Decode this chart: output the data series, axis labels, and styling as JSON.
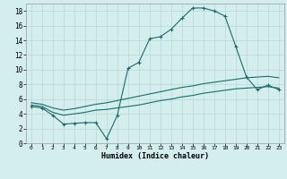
{
  "xlabel": "Humidex (Indice chaleur)",
  "bg_color": "#d4eeee",
  "grid_color": "#b8d8d8",
  "line_color": "#1a6b6b",
  "xlim": [
    -0.5,
    23.5
  ],
  "ylim": [
    0,
    19
  ],
  "xticks": [
    0,
    1,
    2,
    3,
    4,
    5,
    6,
    7,
    8,
    9,
    10,
    11,
    12,
    13,
    14,
    15,
    16,
    17,
    18,
    19,
    20,
    21,
    22,
    23
  ],
  "yticks": [
    0,
    2,
    4,
    6,
    8,
    10,
    12,
    14,
    16,
    18
  ],
  "line1_x": [
    0,
    1,
    2,
    3,
    4,
    5,
    6,
    7,
    8,
    9,
    10,
    11,
    12,
    13,
    14,
    15,
    16,
    17,
    18,
    19,
    20,
    21,
    22,
    23
  ],
  "line1_y": [
    5.0,
    4.8,
    3.8,
    2.6,
    2.7,
    2.8,
    2.8,
    0.6,
    3.8,
    10.2,
    11.0,
    14.2,
    14.5,
    15.5,
    17.0,
    18.4,
    18.4,
    18.0,
    17.3,
    13.2,
    9.0,
    7.3,
    7.9,
    7.3
  ],
  "line2_x": [
    0,
    1,
    2,
    3,
    4,
    5,
    6,
    7,
    8,
    9,
    10,
    11,
    12,
    13,
    14,
    15,
    16,
    17,
    18,
    19,
    20,
    21,
    22,
    23
  ],
  "line2_y": [
    5.2,
    5.0,
    4.2,
    3.8,
    4.0,
    4.2,
    4.5,
    4.6,
    4.8,
    5.0,
    5.2,
    5.5,
    5.8,
    6.0,
    6.3,
    6.5,
    6.8,
    7.0,
    7.2,
    7.4,
    7.5,
    7.6,
    7.7,
    7.5
  ],
  "line3_x": [
    0,
    1,
    2,
    3,
    4,
    5,
    6,
    7,
    8,
    9,
    10,
    11,
    12,
    13,
    14,
    15,
    16,
    17,
    18,
    19,
    20,
    21,
    22,
    23
  ],
  "line3_y": [
    5.5,
    5.3,
    4.8,
    4.5,
    4.7,
    5.0,
    5.3,
    5.5,
    5.8,
    6.1,
    6.4,
    6.7,
    7.0,
    7.3,
    7.6,
    7.8,
    8.1,
    8.3,
    8.5,
    8.7,
    8.9,
    9.0,
    9.1,
    8.9
  ]
}
